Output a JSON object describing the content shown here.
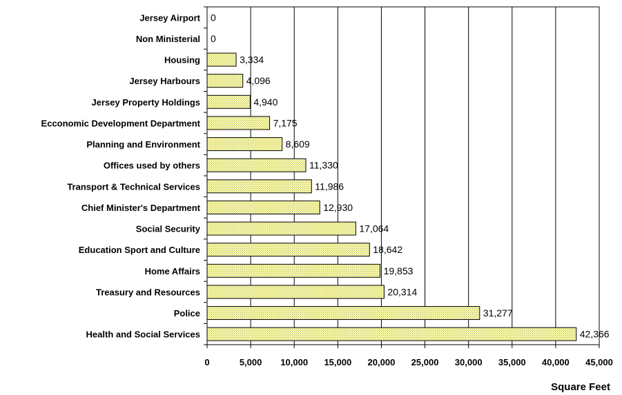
{
  "chart_data": {
    "type": "bar",
    "orientation": "horizontal",
    "categories": [
      "Jersey Airport",
      "Non Ministerial",
      "Housing",
      "Jersey Harbours",
      "Jersey Property Holdings",
      "Ecconomic Development Department",
      "Planning and Environment",
      "Offices used by others",
      "Transport & Technical Services",
      "Chief Minister's Department",
      "Social Security",
      "Education Sport and Culture",
      "Home Affairs",
      "Treasury and Resources",
      "Police",
      "Health and Social Services"
    ],
    "values": [
      0,
      0,
      3334,
      4096,
      4940,
      7175,
      8609,
      11330,
      11986,
      12930,
      17064,
      18642,
      19853,
      20314,
      31277,
      42366
    ],
    "value_labels": [
      "0",
      "0",
      "3,334",
      "4,096",
      "4,940",
      "7,175",
      "8,609",
      "11,330",
      "11,986",
      "12,930",
      "17,064",
      "18,642",
      "19,853",
      "20,314",
      "31,277",
      "42,366"
    ],
    "x_ticks": [
      "0",
      "5,000",
      "10,000",
      "15,000",
      "20,000",
      "25,000",
      "30,000",
      "35,000",
      "40,000",
      "45,000"
    ],
    "xlim": [
      0,
      45000
    ],
    "xlabel": "Square Feet",
    "ylabel": "",
    "title": "",
    "grid": "vertical major gridlines",
    "legend": "none",
    "bar_fill_color": "#ffff99",
    "bar_dot_color": "#a8a8a8"
  }
}
